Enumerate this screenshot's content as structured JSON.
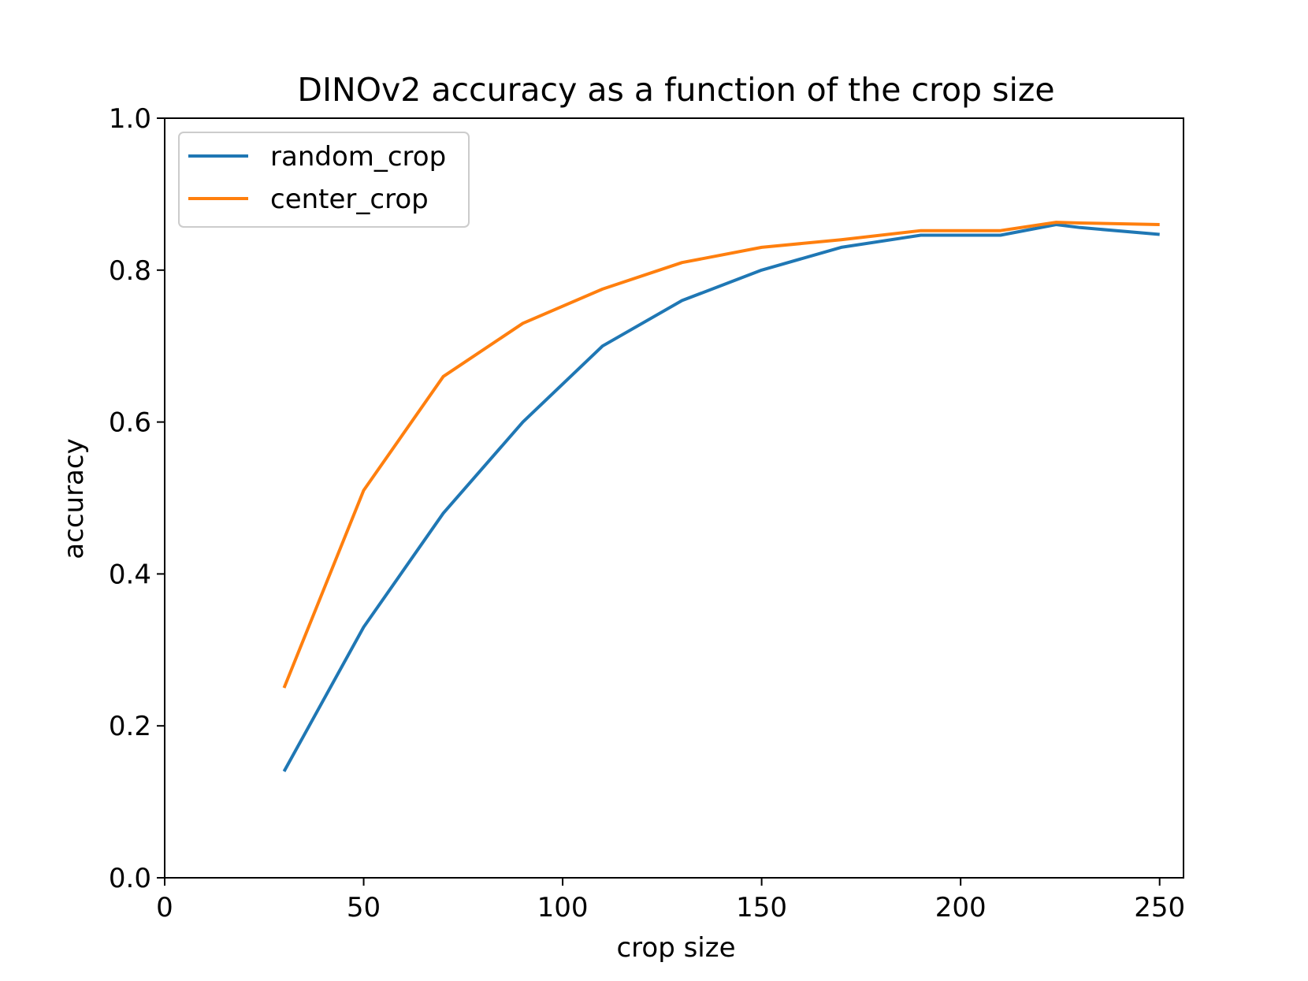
{
  "chart_data": {
    "type": "line",
    "title": "DINOv2 accuracy as a function of the crop size",
    "xlabel": "crop size",
    "ylabel": "accuracy",
    "xlim": [
      0,
      256
    ],
    "ylim": [
      0.0,
      1.0
    ],
    "x_ticks": [
      0,
      50,
      100,
      150,
      200,
      250
    ],
    "x_tick_labels": [
      "0",
      "50",
      "100",
      "150",
      "200",
      "250"
    ],
    "y_ticks": [
      0.0,
      0.2,
      0.4,
      0.6,
      0.8,
      1.0
    ],
    "y_tick_labels": [
      "0.0",
      "0.2",
      "0.4",
      "0.6",
      "0.8",
      "1.0"
    ],
    "grid": false,
    "legend_position": "top-left",
    "series": [
      {
        "name": "random_crop",
        "color": "#1f77b4",
        "x": [
          30,
          50,
          70,
          90,
          110,
          130,
          150,
          170,
          190,
          210,
          224,
          230,
          250
        ],
        "y": [
          0.14,
          0.33,
          0.48,
          0.6,
          0.7,
          0.76,
          0.8,
          0.83,
          0.846,
          0.846,
          0.86,
          0.856,
          0.847
        ]
      },
      {
        "name": "center_crop",
        "color": "#ff7f0e",
        "x": [
          30,
          50,
          70,
          90,
          110,
          130,
          150,
          170,
          190,
          210,
          224,
          230,
          250
        ],
        "y": [
          0.25,
          0.51,
          0.66,
          0.73,
          0.775,
          0.81,
          0.83,
          0.84,
          0.852,
          0.852,
          0.863,
          0.862,
          0.86
        ]
      }
    ]
  }
}
